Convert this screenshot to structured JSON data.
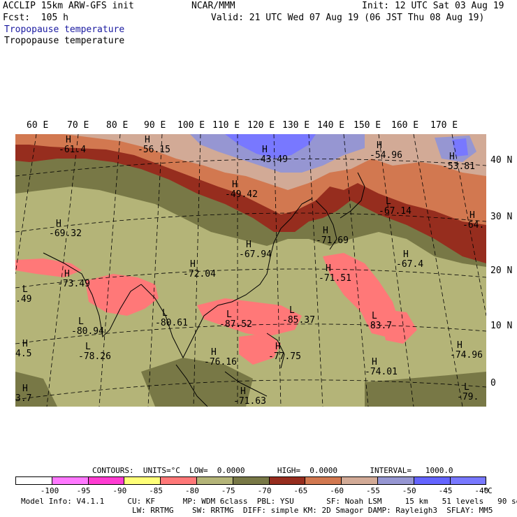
{
  "header": {
    "model": "ACCLIP 15km ARW-GFS init",
    "org": "NCAR/MMM",
    "init": "Init: 12 UTC Sat 03 Aug 19",
    "fcst": "Fcst:  105 h",
    "valid": "Valid: 21 UTC Wed 07 Aug 19 (06 JST Thu 08 Aug 19)",
    "field1": "Tropopause temperature",
    "field2": "Tropopause temperature"
  },
  "lon_labels": [
    "60 E",
    "70 E",
    "80 E",
    "90 E",
    "100 E",
    "110 E",
    "120 E",
    "130 E",
    "140 E",
    "150 E",
    "160 E",
    "170 E"
  ],
  "lat_labels": [
    "40 N",
    "30 N",
    "20 N",
    "10 N",
    "0"
  ],
  "pressure_centers": [
    {
      "type": "H",
      "value": "-61.4"
    },
    {
      "type": "H",
      "value": "-56.15"
    },
    {
      "type": "H",
      "value": "-43.49"
    },
    {
      "type": "H",
      "value": "-49.42"
    },
    {
      "type": "H",
      "value": "-54.96"
    },
    {
      "type": "H",
      "value": "-53.81"
    },
    {
      "type": "L",
      "value": "-67.14"
    },
    {
      "type": "H",
      "value": "-64."
    },
    {
      "type": "H",
      "value": "-69.32"
    },
    {
      "type": "H",
      "value": "-67.94"
    },
    {
      "type": "H",
      "value": "-71.69"
    },
    {
      "type": "H",
      "value": "-67.4"
    },
    {
      "type": "H",
      "value": "-72.04"
    },
    {
      "type": "H",
      "value": "-71.51"
    },
    {
      "type": "H",
      "value": "-73.49"
    },
    {
      "type": "L",
      "value": ".49"
    },
    {
      "type": "L",
      "value": "-80.61"
    },
    {
      "type": "L",
      "value": "-87.52"
    },
    {
      "type": "L",
      "value": "-85.37"
    },
    {
      "type": "L",
      "value": "-83.7"
    },
    {
      "type": "L",
      "value": "-80.94"
    },
    {
      "type": "L",
      "value": "-78.26"
    },
    {
      "type": "H",
      "value": "4.5"
    },
    {
      "type": "H",
      "value": "-76.16"
    },
    {
      "type": "H",
      "value": "-77.75"
    },
    {
      "type": "H",
      "value": "-74.96"
    },
    {
      "type": "H",
      "value": "-74.01"
    },
    {
      "type": "H",
      "value": "3.7"
    },
    {
      "type": "H",
      "value": "-71.63"
    },
    {
      "type": "L",
      "value": "-79."
    }
  ],
  "contours_line": "CONTOURS:  UNITS=°C  LOW=  0.0000       HIGH=  0.0000       INTERVAL=   1000.0",
  "colorbar": {
    "colors": [
      "#ffffff",
      "#ff78ff",
      "#ff3cd2",
      "#ffff78",
      "#ff7878",
      "#b4b478",
      "#787846",
      "#962d1e",
      "#d27850",
      "#d2aa96",
      "#9696d2",
      "#6464ff",
      "#7878ff"
    ],
    "labels": [
      "-100",
      "-95",
      "-90",
      "-85",
      "-80",
      "-75",
      "-70",
      "-65",
      "-60",
      "-55",
      "-50",
      "-45",
      "-40"
    ],
    "unit": "°C"
  },
  "footer": {
    "line1": "Model Info: V4.1.1     CU: KF      MP: WDM 6class  PBL: YSU       SF: Noah LSM     15 km   51 levels   90 sec",
    "line2": "                        LW: RRTMG    SW: RRTMG  DIFF: simple KM: 2D Smagor DAMP: Rayleigh3  SFLAY: MM5"
  },
  "colors": {
    "blue_header": "#1a1aa0",
    "zone_red": "#962d1e",
    "zone_orange": "#d27850",
    "zone_olive": "#787846",
    "zone_khaki": "#b4b478",
    "zone_pink": "#ff7878",
    "zone_lavender": "#9696d2",
    "zone_rose": "#d2aa96"
  }
}
